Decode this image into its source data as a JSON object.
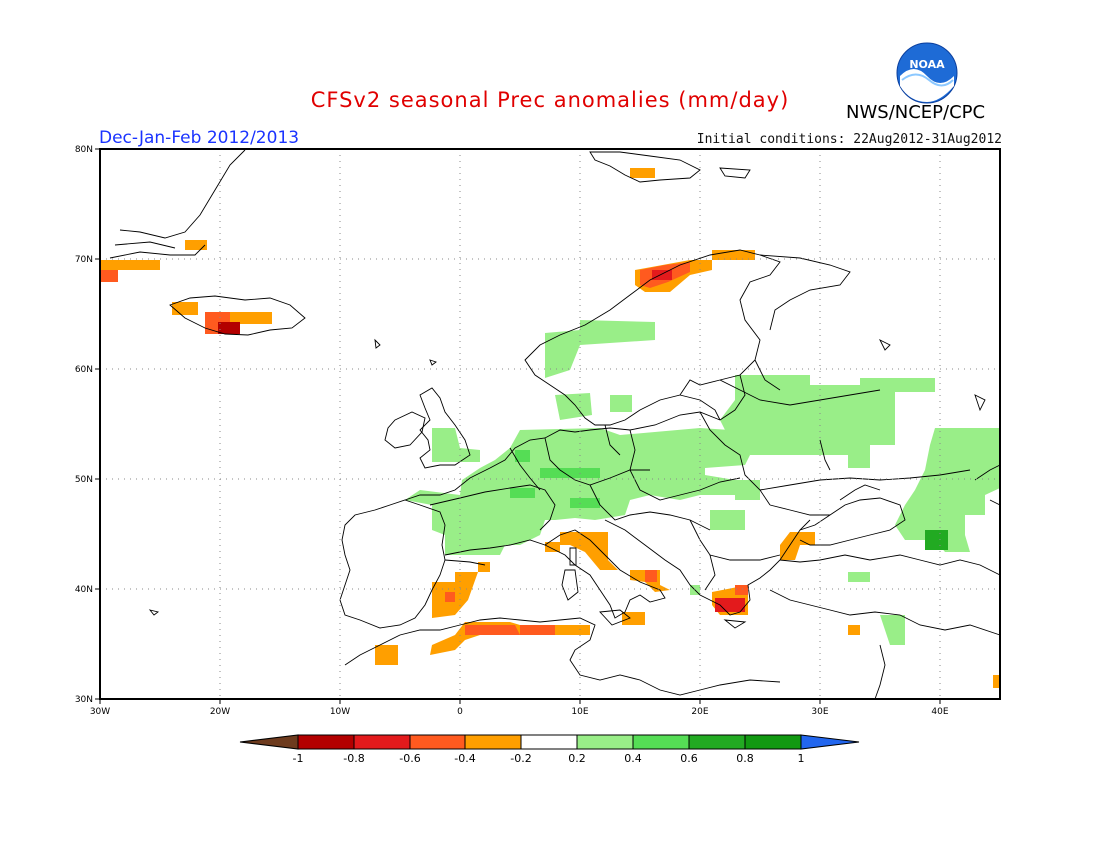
{
  "header": {
    "title": "CFSv2 seasonal Prec anomalies (mm/day)",
    "season": "Dec-Jan-Feb 2012/2013",
    "initial_conditions": "Initial conditions: 22Aug2012-31Aug2012",
    "agency": "NWS/NCEP/CPC",
    "logo_text": "NOAA"
  },
  "map": {
    "lon_range": [
      -30,
      45
    ],
    "lat_range": [
      30,
      80
    ],
    "lon_ticks": [
      "30W",
      "20W",
      "10W",
      "0",
      "10E",
      "20E",
      "30E",
      "40E"
    ],
    "lat_ticks": [
      "30N",
      "40N",
      "50N",
      "60N",
      "70N",
      "80N"
    ],
    "grid": "dotted"
  },
  "colorbar": {
    "ticks": [
      "-1",
      "-0.8",
      "-0.6",
      "-0.4",
      "-0.2",
      "0.2",
      "0.4",
      "0.6",
      "0.8",
      "1"
    ],
    "colors": {
      "below_min": "#6e3b1e",
      "m1_m08": "#b30000",
      "m08_m06": "#e31a1c",
      "m06_m04": "#ff5a1f",
      "m04_m02": "#ff9f00",
      "m02_02": "#ffffff",
      "p02_04": "#99ee88",
      "p04_06": "#55dd55",
      "p06_08": "#22aa22",
      "p08_1": "#119911",
      "above_max": "#2266ee"
    }
  }
}
